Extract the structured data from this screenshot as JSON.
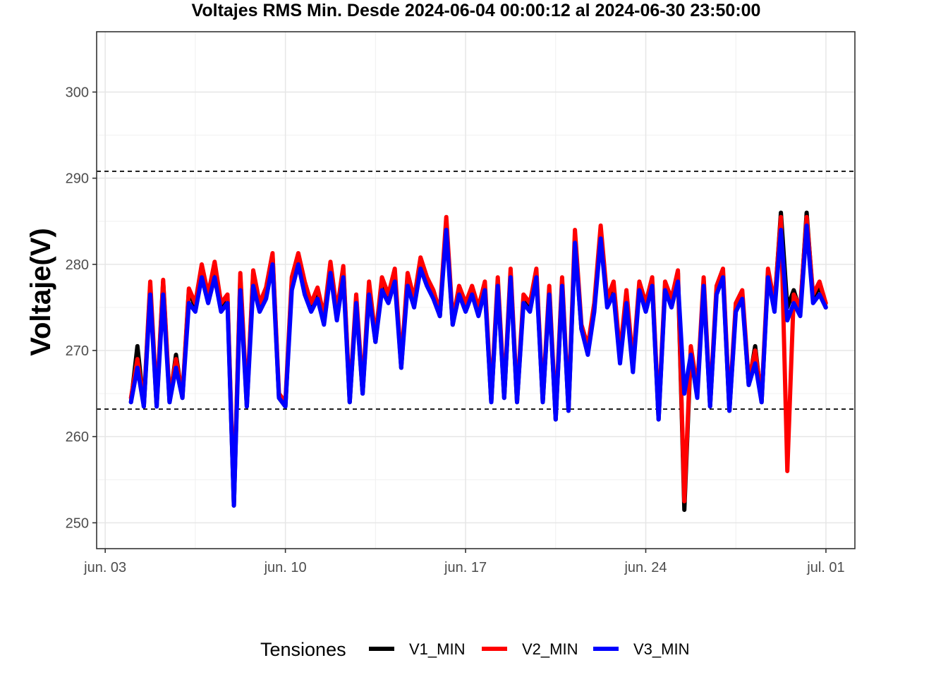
{
  "chart_data": {
    "type": "line",
    "title": "Voltajes RMS Min. Desde  2024-06-04 00:00:12  al  2024-06-30 23:50:00",
    "xlabel": "",
    "ylabel": "Voltaje(V)",
    "xlim": [
      "2024-06-02T16:00",
      "2024-07-02T03:00"
    ],
    "ylim": [
      247,
      307
    ],
    "yticks": [
      250,
      260,
      270,
      280,
      290,
      300
    ],
    "xticks": [
      {
        "date": "2024-06-03",
        "label": "jun. 03"
      },
      {
        "date": "2024-06-10",
        "label": "jun. 10"
      },
      {
        "date": "2024-06-17",
        "label": "jun. 17"
      },
      {
        "date": "2024-06-24",
        "label": "jun. 24"
      },
      {
        "date": "2024-07-01",
        "label": "jul. 01"
      }
    ],
    "grid": true,
    "hlines": [
      {
        "value": 290.8,
        "style": "dashed"
      },
      {
        "value": 263.2,
        "style": "dashed"
      }
    ],
    "legend": {
      "title": "Tensiones",
      "position": "bottom"
    },
    "x": [
      "2024-06-04T00:00",
      "2024-06-04T06:00",
      "2024-06-04T12:00",
      "2024-06-04T18:00",
      "2024-06-05T00:00",
      "2024-06-05T06:00",
      "2024-06-05T12:00",
      "2024-06-05T18:00",
      "2024-06-06T00:00",
      "2024-06-06T06:00",
      "2024-06-06T12:00",
      "2024-06-06T18:00",
      "2024-06-07T00:00",
      "2024-06-07T06:00",
      "2024-06-07T12:00",
      "2024-06-07T18:00",
      "2024-06-08T00:00",
      "2024-06-08T06:00",
      "2024-06-08T12:00",
      "2024-06-08T18:00",
      "2024-06-09T00:00",
      "2024-06-09T06:00",
      "2024-06-09T12:00",
      "2024-06-09T18:00",
      "2024-06-10T00:00",
      "2024-06-10T06:00",
      "2024-06-10T12:00",
      "2024-06-10T18:00",
      "2024-06-11T00:00",
      "2024-06-11T06:00",
      "2024-06-11T12:00",
      "2024-06-11T18:00",
      "2024-06-12T00:00",
      "2024-06-12T06:00",
      "2024-06-12T12:00",
      "2024-06-12T18:00",
      "2024-06-13T00:00",
      "2024-06-13T06:00",
      "2024-06-13T12:00",
      "2024-06-13T18:00",
      "2024-06-14T00:00",
      "2024-06-14T06:00",
      "2024-06-14T12:00",
      "2024-06-14T18:00",
      "2024-06-15T00:00",
      "2024-06-15T06:00",
      "2024-06-15T12:00",
      "2024-06-15T18:00",
      "2024-06-16T00:00",
      "2024-06-16T06:00",
      "2024-06-16T12:00",
      "2024-06-16T18:00",
      "2024-06-17T00:00",
      "2024-06-17T06:00",
      "2024-06-17T12:00",
      "2024-06-17T18:00",
      "2024-06-18T00:00",
      "2024-06-18T06:00",
      "2024-06-18T12:00",
      "2024-06-18T18:00",
      "2024-06-19T00:00",
      "2024-06-19T06:00",
      "2024-06-19T12:00",
      "2024-06-19T18:00",
      "2024-06-20T00:00",
      "2024-06-20T06:00",
      "2024-06-20T12:00",
      "2024-06-20T18:00",
      "2024-06-21T00:00",
      "2024-06-21T06:00",
      "2024-06-21T12:00",
      "2024-06-21T18:00",
      "2024-06-22T00:00",
      "2024-06-22T06:00",
      "2024-06-22T12:00",
      "2024-06-22T18:00",
      "2024-06-23T00:00",
      "2024-06-23T06:00",
      "2024-06-23T12:00",
      "2024-06-23T18:00",
      "2024-06-24T00:00",
      "2024-06-24T06:00",
      "2024-06-24T12:00",
      "2024-06-24T18:00",
      "2024-06-25T00:00",
      "2024-06-25T06:00",
      "2024-06-25T12:00",
      "2024-06-25T18:00",
      "2024-06-26T00:00",
      "2024-06-26T06:00",
      "2024-06-26T12:00",
      "2024-06-26T18:00",
      "2024-06-27T00:00",
      "2024-06-27T06:00",
      "2024-06-27T12:00",
      "2024-06-27T18:00",
      "2024-06-28T00:00",
      "2024-06-28T06:00",
      "2024-06-28T12:00",
      "2024-06-28T18:00",
      "2024-06-29T00:00",
      "2024-06-29T06:00",
      "2024-06-29T12:00",
      "2024-06-29T18:00",
      "2024-06-30T00:00",
      "2024-06-30T06:00",
      "2024-06-30T12:00",
      "2024-06-30T18:00",
      "2024-06-30T23:50"
    ],
    "series": [
      {
        "name": "V1_MIN",
        "color": "#000000",
        "values": [
          264,
          270.5,
          263.5,
          277.5,
          263.5,
          278,
          264,
          269.5,
          264.5,
          277,
          275,
          279.5,
          276,
          279.8,
          275,
          276,
          252,
          278.5,
          263.5,
          279,
          275,
          277,
          281,
          264.5,
          263.5,
          278,
          281,
          277.5,
          275,
          277,
          273.5,
          280,
          274,
          279.5,
          264,
          276,
          265,
          277.5,
          271,
          278,
          276,
          279,
          268,
          278.5,
          275.5,
          280.5,
          278,
          276.5,
          274,
          285,
          273,
          277,
          275,
          277,
          274.5,
          277.5,
          264,
          278,
          264.5,
          279,
          264,
          276,
          275,
          279,
          264,
          277,
          262,
          278,
          263,
          283,
          272.5,
          270,
          275,
          284,
          275.5,
          277.5,
          269,
          276.5,
          268,
          277.5,
          275,
          278,
          262,
          277.5,
          275.5,
          279,
          251.5,
          270,
          265,
          278,
          263.5,
          277,
          279,
          263,
          275,
          276.5,
          266,
          270.5,
          264,
          279,
          275,
          286,
          275,
          277,
          274.5,
          286,
          276,
          277.5,
          275
        ]
      },
      {
        "name": "V2_MIN",
        "color": "#ff0000",
        "values": [
          264.5,
          269,
          263.8,
          278,
          264,
          278.2,
          264.5,
          269,
          264.8,
          277.2,
          275.5,
          280,
          276.5,
          280.3,
          275.5,
          276.5,
          252.5,
          279,
          264,
          279.3,
          275.5,
          277.3,
          281.3,
          265,
          264,
          278.5,
          281.3,
          278,
          275.5,
          277.3,
          274,
          280.3,
          274.5,
          279.8,
          264.5,
          276.5,
          265.5,
          278,
          271.5,
          278.5,
          276.5,
          279.5,
          268.5,
          279,
          276,
          280.8,
          278.5,
          277,
          274.5,
          285.5,
          273.5,
          277.5,
          275.5,
          277.5,
          275,
          278,
          264.5,
          278.5,
          265,
          279.5,
          264.5,
          276.5,
          275.5,
          279.5,
          264.5,
          277.5,
          262.5,
          278.5,
          263.5,
          284,
          273,
          270.5,
          275.5,
          284.5,
          276,
          278,
          269.5,
          277,
          268.5,
          278,
          275.5,
          278.5,
          262.5,
          278,
          276,
          279.3,
          252.5,
          270.5,
          265.5,
          278.5,
          264,
          277.5,
          279.5,
          263.5,
          275.5,
          277,
          266.5,
          270,
          264.5,
          279.5,
          275.5,
          285.5,
          256,
          276.5,
          275,
          285.5,
          276.5,
          278,
          275.5
        ]
      },
      {
        "name": "V3_MIN",
        "color": "#0000ff",
        "values": [
          264,
          268,
          263.5,
          276.5,
          263.5,
          276.5,
          264,
          268,
          264.5,
          275.5,
          274.5,
          278.5,
          275.5,
          278.5,
          274.5,
          275.5,
          252,
          277,
          263.5,
          277.5,
          274.5,
          276,
          280,
          264.5,
          263.5,
          277,
          280,
          276.5,
          274.5,
          276,
          273,
          279,
          273.5,
          278.5,
          264,
          275.5,
          265,
          276.5,
          271,
          277,
          275.5,
          278,
          268,
          277.5,
          275,
          279.5,
          277.5,
          276,
          274,
          284,
          273,
          276.5,
          274.5,
          276.5,
          274,
          277,
          264,
          277.5,
          264.5,
          278.5,
          264,
          275.5,
          274.5,
          278.5,
          264,
          276.5,
          262,
          277.5,
          263,
          282.5,
          272.5,
          269.5,
          274.5,
          283,
          275,
          276.5,
          268.5,
          275.5,
          267.5,
          277,
          274.5,
          277.5,
          262,
          277,
          275,
          278,
          265,
          269.5,
          264.5,
          277.5,
          263.5,
          276.5,
          278.5,
          263,
          274.5,
          276,
          266,
          268.5,
          264,
          278.5,
          274.5,
          284,
          273.5,
          275.5,
          274,
          284.5,
          275.5,
          276.5,
          275
        ]
      }
    ]
  }
}
